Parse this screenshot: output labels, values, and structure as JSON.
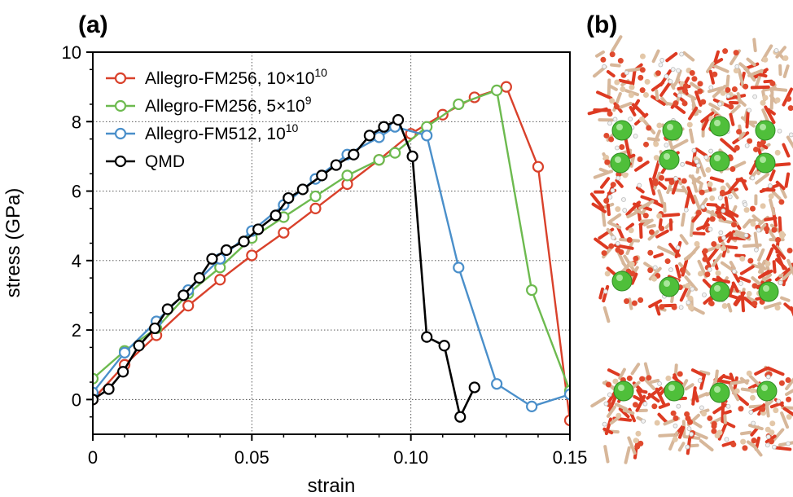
{
  "panels": {
    "a_label": "(a)",
    "b_label": "(b)"
  },
  "chart_data": {
    "type": "line",
    "xlabel": "strain",
    "ylabel": "stress (GPa)",
    "xlim": [
      0,
      0.15
    ],
    "ylim": [
      -1,
      10
    ],
    "xticks": [
      0,
      0.05,
      0.1,
      0.15
    ],
    "xtick_labels": [
      "0",
      "0.05",
      "0.10",
      "0.15"
    ],
    "yticks": [
      0,
      2,
      4,
      6,
      8,
      10
    ],
    "ytick_labels": [
      "0",
      "2",
      "4",
      "6",
      "8",
      "10"
    ],
    "grid": true,
    "legend_position": "top-left",
    "series": [
      {
        "name": "Allegro-FM256, 10×10",
        "name_sup": "10",
        "color": "#d9412b",
        "x": [
          0,
          0.01,
          0.02,
          0.03,
          0.04,
          0.05,
          0.06,
          0.07,
          0.08,
          0.09,
          0.1,
          0.11,
          0.12,
          0.13,
          0.14,
          0.15
        ],
        "y": [
          0,
          1.0,
          1.85,
          2.7,
          3.45,
          4.15,
          4.8,
          5.5,
          6.2,
          6.9,
          7.65,
          8.2,
          8.7,
          9.0,
          6.7,
          -0.6
        ]
      },
      {
        "name": "Allegro-FM256, 5×10",
        "name_sup": "9",
        "color": "#6dba4f",
        "x": [
          0,
          0.01,
          0.02,
          0.03,
          0.04,
          0.05,
          0.06,
          0.07,
          0.08,
          0.09,
          0.095,
          0.105,
          0.115,
          0.127,
          0.138,
          0.15
        ],
        "y": [
          0.6,
          1.4,
          2.05,
          3.05,
          3.8,
          4.65,
          5.25,
          5.85,
          6.45,
          6.9,
          7.1,
          7.85,
          8.5,
          8.9,
          3.15,
          0.25
        ]
      },
      {
        "name": "Allegro-FM512, 10",
        "name_sup": "10",
        "color": "#4a8fca",
        "x": [
          0,
          0.01,
          0.02,
          0.03,
          0.04,
          0.05,
          0.06,
          0.07,
          0.08,
          0.09,
          0.095,
          0.105,
          0.115,
          0.127,
          0.138,
          0.15
        ],
        "y": [
          0.2,
          1.35,
          2.25,
          3.15,
          4.05,
          4.85,
          5.6,
          6.35,
          7.05,
          7.55,
          7.85,
          7.6,
          3.8,
          0.45,
          -0.2,
          0.15
        ]
      },
      {
        "name": "QMD",
        "name_sup": "",
        "color": "#000000",
        "x": [
          0,
          0.005,
          0.0095,
          0.0145,
          0.0195,
          0.0235,
          0.0285,
          0.0335,
          0.0375,
          0.042,
          0.0475,
          0.052,
          0.0575,
          0.0615,
          0.066,
          0.072,
          0.0765,
          0.082,
          0.087,
          0.0915,
          0.096,
          0.1005,
          0.105,
          0.1105,
          0.1155,
          0.12
        ],
        "y": [
          0,
          0.3,
          0.8,
          1.55,
          2.05,
          2.6,
          3.0,
          3.5,
          4.05,
          4.3,
          4.55,
          4.9,
          5.3,
          5.8,
          6.05,
          6.45,
          6.75,
          7.05,
          7.6,
          7.85,
          8.05,
          7.0,
          1.8,
          1.55,
          -0.5,
          0.35
        ]
      }
    ]
  }
}
